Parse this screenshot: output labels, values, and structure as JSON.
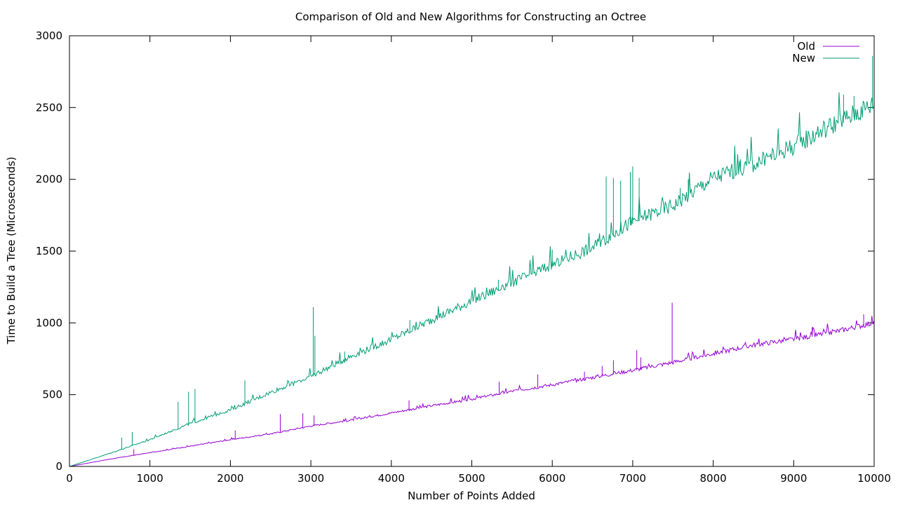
{
  "chart_data": {
    "type": "line",
    "title": "Comparison of Old and New Algorithms for Constructing an Octree",
    "xlabel": "Number of Points Added",
    "ylabel": "Time to Build a Tree (Microseconds)",
    "xlim": [
      0,
      10000
    ],
    "ylim": [
      0,
      3000
    ],
    "x_ticks": [
      0,
      1000,
      2000,
      3000,
      4000,
      5000,
      6000,
      7000,
      8000,
      9000,
      10000
    ],
    "y_ticks": [
      0,
      500,
      1000,
      1500,
      2000,
      2500,
      3000
    ],
    "grid": false,
    "legend_position": "top-right",
    "series": [
      {
        "name": "Old",
        "color": "#9400d3",
        "x": [
          0,
          500,
          1000,
          1500,
          2000,
          2500,
          3000,
          3500,
          4000,
          4500,
          5000,
          5500,
          6000,
          6500,
          7000,
          7500,
          8000,
          8500,
          9000,
          9500,
          10000
        ],
        "values": [
          0,
          50,
          95,
          140,
          185,
          225,
          280,
          320,
          370,
          420,
          465,
          520,
          565,
          615,
          665,
          720,
          780,
          840,
          880,
          930,
          995
        ],
        "spikes": [
          [
            800,
            120
          ],
          [
            2060,
            250
          ],
          [
            2620,
            365
          ],
          [
            2900,
            370
          ],
          [
            3040,
            355
          ],
          [
            4220,
            460
          ],
          [
            5340,
            590
          ],
          [
            5820,
            640
          ],
          [
            6400,
            660
          ],
          [
            6620,
            700
          ],
          [
            6760,
            740
          ],
          [
            7050,
            810
          ],
          [
            7100,
            760
          ],
          [
            7490,
            1140
          ],
          [
            9230,
            970
          ],
          [
            9870,
            1060
          ]
        ]
      },
      {
        "name": "New",
        "color": "#009e73",
        "x": [
          0,
          500,
          1000,
          1500,
          2000,
          2500,
          3000,
          3500,
          4000,
          4500,
          5000,
          5500,
          6000,
          6500,
          7000,
          7500,
          8000,
          8500,
          9000,
          9500,
          10000
        ],
        "values": [
          0,
          90,
          185,
          295,
          390,
          510,
          620,
          760,
          875,
          1010,
          1140,
          1265,
          1390,
          1510,
          1690,
          1800,
          1990,
          2085,
          2210,
          2360,
          2500
        ],
        "spikes": [
          [
            650,
            200
          ],
          [
            780,
            240
          ],
          [
            1350,
            450
          ],
          [
            1480,
            520
          ],
          [
            1560,
            540
          ],
          [
            2180,
            600
          ],
          [
            3030,
            1110
          ],
          [
            3050,
            910
          ],
          [
            3420,
            800
          ],
          [
            4230,
            1020
          ],
          [
            5330,
            1300
          ],
          [
            6000,
            1510
          ],
          [
            6670,
            2020
          ],
          [
            6760,
            2010
          ],
          [
            6850,
            1990
          ],
          [
            6970,
            2050
          ],
          [
            7000,
            2090
          ],
          [
            7080,
            2010
          ],
          [
            7590,
            1940
          ],
          [
            7690,
            2000
          ],
          [
            8340,
            2140
          ],
          [
            9620,
            2590
          ],
          [
            9750,
            2580
          ],
          [
            9980,
            2860
          ],
          [
            10000,
            2990
          ]
        ]
      }
    ]
  }
}
